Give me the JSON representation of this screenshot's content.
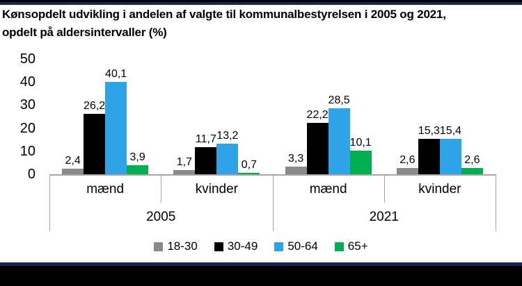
{
  "frame": {
    "top_bar_color": "#000000",
    "accent_line_color": "#1b2555"
  },
  "chart_data": {
    "type": "bar",
    "title": "Kønsopdelt udvikling i andelen af valgte til kommunalbestyrelsen i 2005 og 2021, opdelt på aldersintervaller (%)",
    "title_lines": [
      "Kønsopdelt udvikling i andelen af valgte til kommunalbestyrelsen i 2005 og 2021,",
      "opdelt på aldersintervaller (%)"
    ],
    "ylim": [
      0,
      50
    ],
    "yticks": [
      0,
      10,
      20,
      30,
      40,
      50
    ],
    "grid": false,
    "legend_position": "bottom",
    "axis_color": "#a6a6a6",
    "categories": [
      "mænd",
      "kvinder",
      "mænd",
      "kvinder"
    ],
    "category_groups": [
      {
        "label": "2005",
        "span": [
          0,
          1
        ]
      },
      {
        "label": "2021",
        "span": [
          2,
          3
        ]
      }
    ],
    "series": [
      {
        "name": "18-30",
        "color": "#8a8a8a",
        "values": [
          2.4,
          1.7,
          3.3,
          2.6
        ],
        "value_labels": [
          "2,4",
          "1,7",
          "3,3",
          "2,6"
        ]
      },
      {
        "name": "30-49",
        "color": "#000000",
        "values": [
          26.2,
          11.7,
          22.2,
          15.3
        ],
        "value_labels": [
          "26,2",
          "11,7",
          "22,2",
          "15,3"
        ]
      },
      {
        "name": "50-64",
        "color": "#2fa3e8",
        "values": [
          40.1,
          13.2,
          28.5,
          15.4
        ],
        "value_labels": [
          "40,1",
          "13,2",
          "28,5",
          "15,4"
        ]
      },
      {
        "name": "65+",
        "color": "#00b050",
        "values": [
          3.9,
          0.7,
          10.1,
          2.6
        ],
        "value_labels": [
          "3,9",
          "0,7",
          "10,1",
          "2,6"
        ]
      }
    ]
  }
}
